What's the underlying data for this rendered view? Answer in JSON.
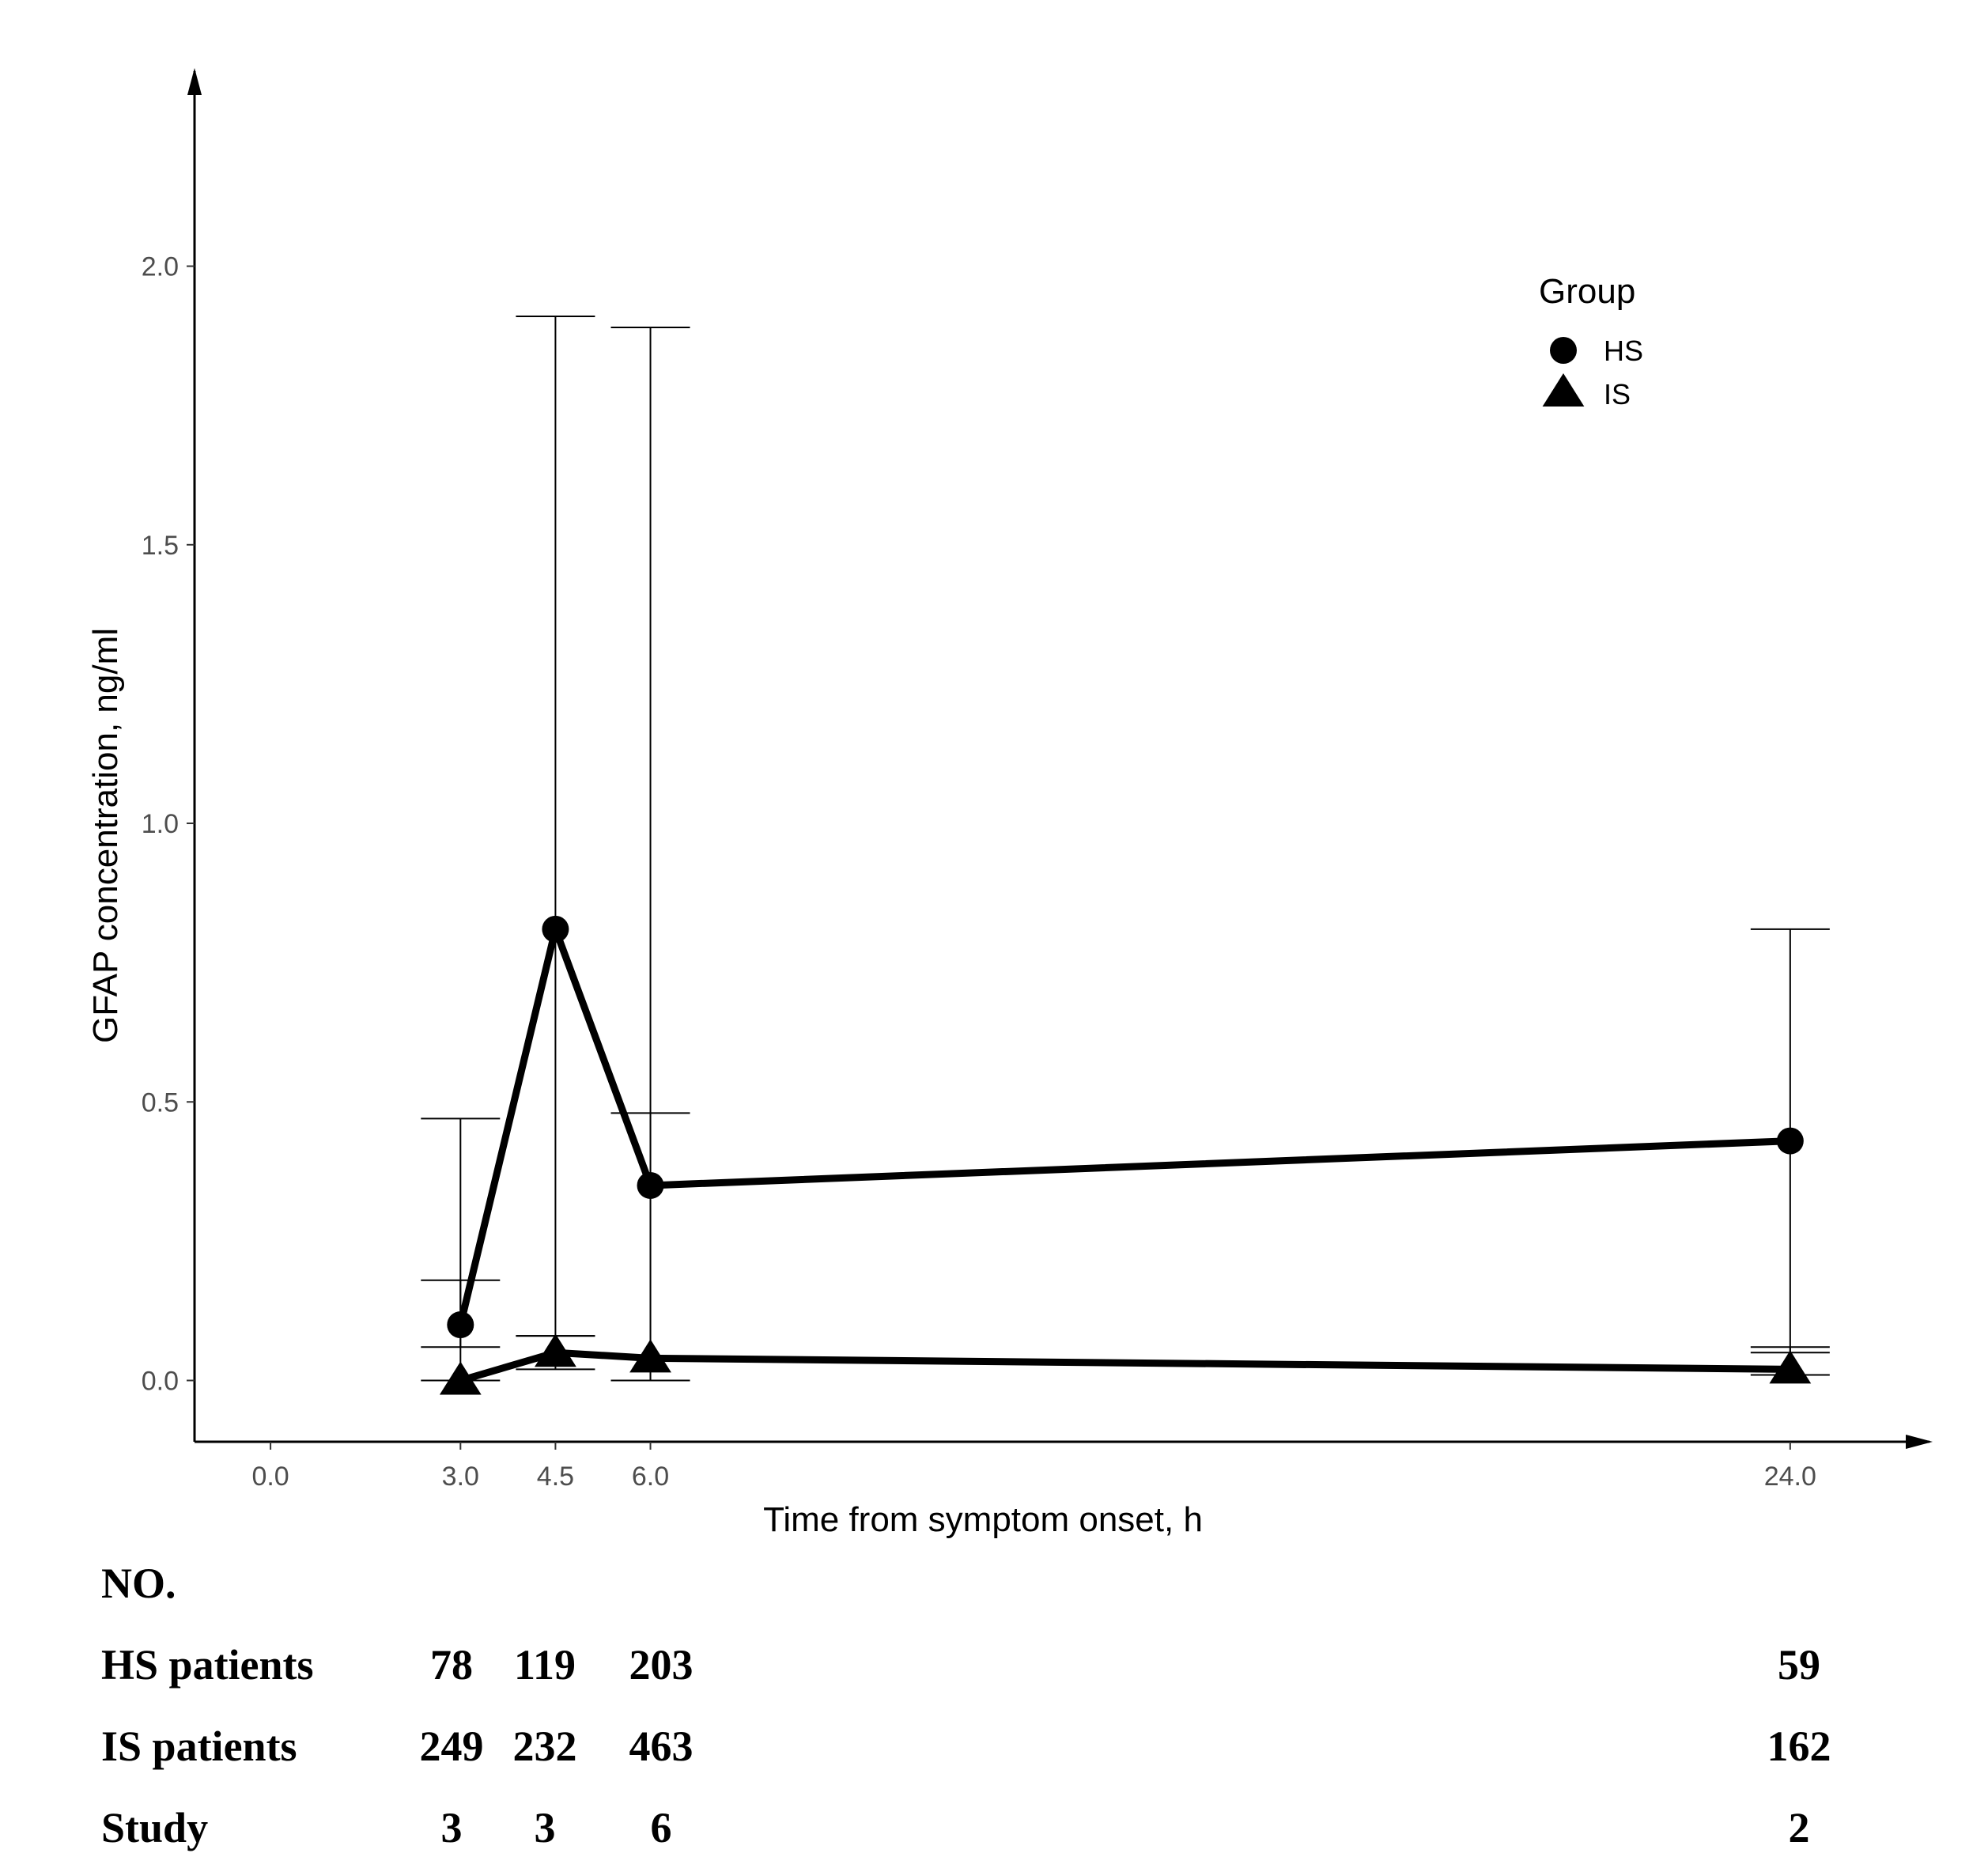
{
  "chart_data": {
    "type": "line",
    "xlabel": "Time from symptom onset, h",
    "ylabel": "GFAP concentration, ng/ml",
    "x_ticks": [
      "0.0",
      "3.0",
      "4.5",
      "6.0",
      "24.0"
    ],
    "y_ticks": [
      "0.0",
      "0.5",
      "1.0",
      "1.5",
      "2.0"
    ],
    "xlim": [
      -1.2,
      26.2
    ],
    "ylim": [
      -0.11,
      2.35
    ],
    "grid": false,
    "legend": {
      "title": "Group",
      "position": "top-right"
    },
    "series": [
      {
        "name": "HS",
        "marker": "circle",
        "x": [
          3.0,
          4.5,
          6.0,
          24.0
        ],
        "y": [
          0.1,
          0.81,
          0.35,
          0.43
        ],
        "err_low": [
          0.06,
          0.08,
          0.0,
          0.05
        ],
        "err_high": [
          0.47,
          1.91,
          1.89,
          0.81
        ]
      },
      {
        "name": "IS",
        "marker": "triangle",
        "x": [
          3.0,
          4.5,
          6.0,
          24.0
        ],
        "y": [
          0.0,
          0.05,
          0.04,
          0.02
        ],
        "err_low": [
          0.0,
          0.02,
          0.0,
          0.01
        ],
        "err_high": [
          0.18,
          0.08,
          0.48,
          0.06
        ]
      }
    ]
  },
  "table": {
    "header": "NO.",
    "rows": [
      {
        "label": "HS patients",
        "values": [
          "78",
          "119",
          "203",
          "59"
        ]
      },
      {
        "label": "IS patients",
        "values": [
          "249",
          "232",
          "463",
          "162"
        ]
      },
      {
        "label": "Study",
        "values": [
          "3",
          "3",
          "6",
          "2"
        ]
      }
    ]
  }
}
